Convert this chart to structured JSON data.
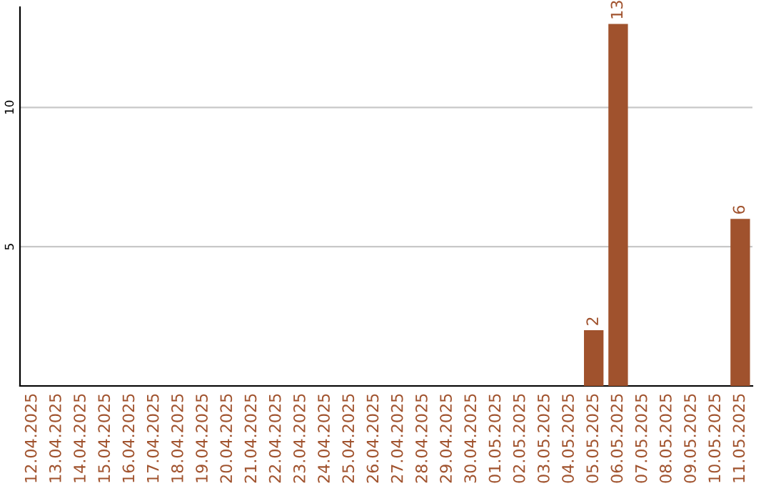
{
  "chart_data": {
    "type": "bar",
    "categories": [
      "12.04.2025",
      "13.04.2025",
      "14.04.2025",
      "15.04.2025",
      "16.04.2025",
      "17.04.2025",
      "18.04.2025",
      "19.04.2025",
      "20.04.2025",
      "21.04.2025",
      "22.04.2025",
      "23.04.2025",
      "24.04.2025",
      "25.04.2025",
      "26.04.2025",
      "27.04.2025",
      "28.04.2025",
      "29.04.2025",
      "30.04.2025",
      "01.05.2025",
      "02.05.2025",
      "03.05.2025",
      "04.05.2025",
      "05.05.2025",
      "06.05.2025",
      "07.05.2025",
      "08.05.2025",
      "09.05.2025",
      "10.05.2025",
      "11.05.2025"
    ],
    "values": [
      0,
      0,
      0,
      0,
      0,
      0,
      0,
      0,
      0,
      0,
      0,
      0,
      0,
      0,
      0,
      0,
      0,
      0,
      0,
      0,
      0,
      0,
      0,
      2,
      13,
      0,
      0,
      0,
      0,
      6
    ],
    "value_labels": [
      null,
      null,
      null,
      null,
      null,
      null,
      null,
      null,
      null,
      null,
      null,
      null,
      null,
      null,
      null,
      null,
      null,
      null,
      null,
      null,
      null,
      null,
      null,
      "2",
      "13",
      null,
      null,
      null,
      null,
      "6"
    ],
    "color": "#a0522d",
    "ylim": [
      0,
      13.6
    ],
    "yticks": [
      5,
      10
    ],
    "grid": "y"
  }
}
